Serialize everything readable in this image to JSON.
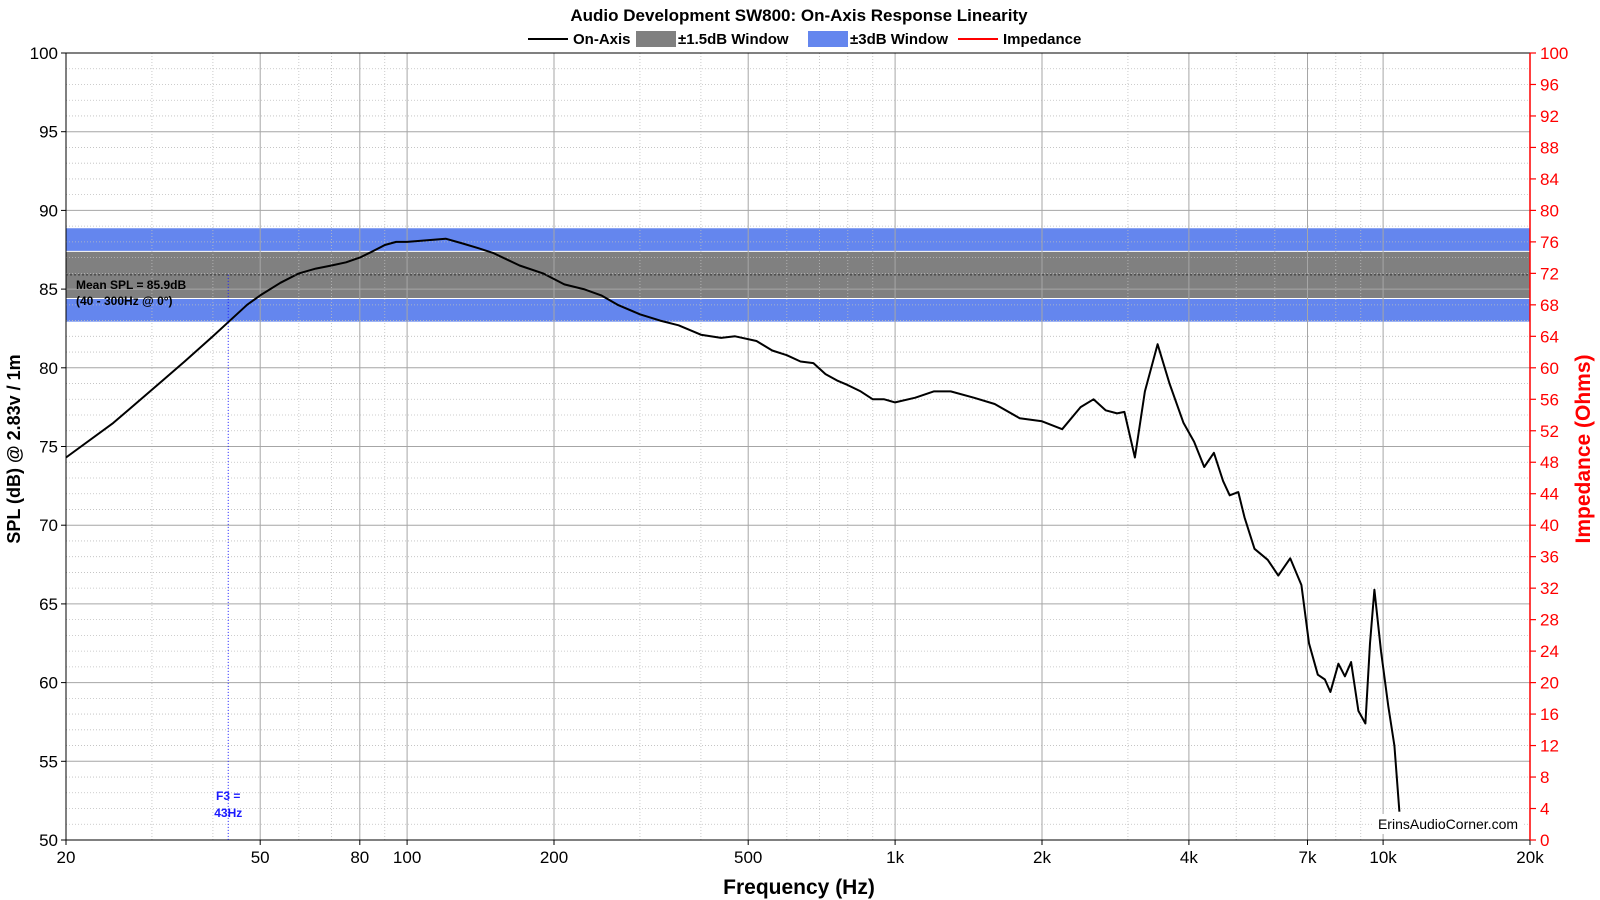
{
  "chart_data": {
    "type": "line",
    "title": "Audio Development SW800: On-Axis Response Linearity",
    "xlabel": "Frequency (Hz)",
    "ylabel": "SPL (dB) @ 2.83v / 1m",
    "y2label": "Impedance (Ohms)",
    "xscale": "log",
    "xlim": [
      20,
      20000
    ],
    "ylim": [
      50,
      100
    ],
    "y2lim": [
      0,
      100
    ],
    "x_ticks": [
      {
        "value": 20,
        "label": "20"
      },
      {
        "value": 50,
        "label": "50"
      },
      {
        "value": 80,
        "label": "80"
      },
      {
        "value": 100,
        "label": "100"
      },
      {
        "value": 200,
        "label": "200"
      },
      {
        "value": 500,
        "label": "500"
      },
      {
        "value": 1000,
        "label": "1k"
      },
      {
        "value": 2000,
        "label": "2k"
      },
      {
        "value": 4000,
        "label": "4k"
      },
      {
        "value": 7000,
        "label": "7k"
      },
      {
        "value": 10000,
        "label": "10k"
      },
      {
        "value": 20000,
        "label": "20k"
      }
    ],
    "y_ticks": [
      "50",
      "55",
      "60",
      "65",
      "70",
      "75",
      "80",
      "85",
      "90",
      "95",
      "100"
    ],
    "y2_ticks": [
      "0",
      "4",
      "8",
      "12",
      "16",
      "20",
      "24",
      "28",
      "32",
      "36",
      "40",
      "44",
      "48",
      "52",
      "56",
      "60",
      "64",
      "68",
      "72",
      "76",
      "80",
      "84",
      "88",
      "92",
      "96",
      "100"
    ],
    "grid": true,
    "legend_position": "top-center",
    "legend": [
      {
        "label": "On-Axis",
        "kind": "line",
        "color": "#000000"
      },
      {
        "label": "±1.5dB Window",
        "kind": "box",
        "color": "#808080"
      },
      {
        "label": "±3dB Window",
        "kind": "box",
        "color": "#6486ee"
      },
      {
        "label": "Impedance",
        "kind": "line",
        "color": "#ff0000"
      }
    ],
    "bands": [
      {
        "name": "±3dB Window",
        "y0": 82.9,
        "y1": 88.9,
        "color": "#6486ee"
      },
      {
        "name": "±1.5dB Window",
        "y0": 84.4,
        "y1": 87.4,
        "color": "#808080"
      }
    ],
    "mean_line": 85.9,
    "annotations": {
      "mean_line1": "Mean SPL = 85.9dB",
      "mean_line2": "(40 - 300Hz @ 0°)",
      "f3_line1": "F3 =",
      "f3_line2": "43Hz",
      "f3_freq": 43,
      "watermark": "ErinsAudioCorner.com"
    },
    "series": [
      {
        "name": "On-Axis",
        "color": "#000000",
        "points": [
          [
            20,
            74.3
          ],
          [
            25,
            76.5
          ],
          [
            30,
            78.6
          ],
          [
            35,
            80.4
          ],
          [
            40,
            82.0
          ],
          [
            43,
            82.9
          ],
          [
            47,
            84.0
          ],
          [
            50,
            84.6
          ],
          [
            55,
            85.4
          ],
          [
            60,
            86.0
          ],
          [
            65,
            86.3
          ],
          [
            70,
            86.5
          ],
          [
            75,
            86.7
          ],
          [
            80,
            87.0
          ],
          [
            85,
            87.4
          ],
          [
            90,
            87.8
          ],
          [
            95,
            88.0
          ],
          [
            100,
            88.0
          ],
          [
            110,
            88.1
          ],
          [
            120,
            88.2
          ],
          [
            130,
            87.9
          ],
          [
            140,
            87.6
          ],
          [
            150,
            87.3
          ],
          [
            170,
            86.5
          ],
          [
            190,
            86.0
          ],
          [
            210,
            85.3
          ],
          [
            230,
            85.0
          ],
          [
            250,
            84.6
          ],
          [
            270,
            84.0
          ],
          [
            300,
            83.4
          ],
          [
            330,
            83.0
          ],
          [
            360,
            82.7
          ],
          [
            400,
            82.1
          ],
          [
            440,
            81.9
          ],
          [
            470,
            82.0
          ],
          [
            520,
            81.7
          ],
          [
            560,
            81.1
          ],
          [
            600,
            80.8
          ],
          [
            640,
            80.4
          ],
          [
            680,
            80.3
          ],
          [
            720,
            79.6
          ],
          [
            760,
            79.2
          ],
          [
            800,
            78.9
          ],
          [
            850,
            78.5
          ],
          [
            900,
            78.0
          ],
          [
            950,
            78.0
          ],
          [
            1000,
            77.8
          ],
          [
            1100,
            78.1
          ],
          [
            1200,
            78.5
          ],
          [
            1300,
            78.5
          ],
          [
            1450,
            78.1
          ],
          [
            1600,
            77.7
          ],
          [
            1800,
            76.8
          ],
          [
            2000,
            76.6
          ],
          [
            2200,
            76.1
          ],
          [
            2400,
            77.5
          ],
          [
            2550,
            78.0
          ],
          [
            2700,
            77.3
          ],
          [
            2850,
            77.1
          ],
          [
            2950,
            77.2
          ],
          [
            3100,
            74.3
          ],
          [
            3250,
            78.5
          ],
          [
            3450,
            81.5
          ],
          [
            3650,
            79.0
          ],
          [
            3900,
            76.5
          ],
          [
            4100,
            75.3
          ],
          [
            4300,
            73.7
          ],
          [
            4500,
            74.6
          ],
          [
            4700,
            72.8
          ],
          [
            4850,
            71.9
          ],
          [
            5050,
            72.1
          ],
          [
            5200,
            70.5
          ],
          [
            5450,
            68.5
          ],
          [
            5800,
            67.8
          ],
          [
            6100,
            66.8
          ],
          [
            6450,
            67.9
          ],
          [
            6800,
            66.2
          ],
          [
            7050,
            62.5
          ],
          [
            7350,
            60.5
          ],
          [
            7600,
            60.2
          ],
          [
            7800,
            59.4
          ],
          [
            8100,
            61.2
          ],
          [
            8350,
            60.4
          ],
          [
            8600,
            61.3
          ],
          [
            8900,
            58.2
          ],
          [
            9200,
            57.4
          ],
          [
            9400,
            62.5
          ],
          [
            9600,
            65.9
          ],
          [
            9900,
            62.0
          ],
          [
            10250,
            58.5
          ],
          [
            10550,
            56.0
          ],
          [
            10800,
            51.8
          ]
        ]
      }
    ]
  }
}
